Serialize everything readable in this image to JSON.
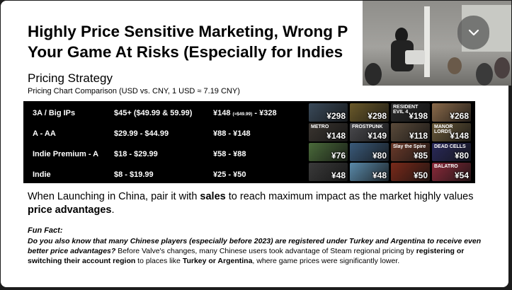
{
  "slide": {
    "title_line1": "Highly Price Sensitive Marketing, Wrong P",
    "title_line2": "Your Game At Risks (Especially for Indies",
    "subtitle": "Pricing Strategy",
    "subnote": "Pricing Chart Comparison (USD vs. CNY, 1 USD ≈ 7.19 CNY)"
  },
  "pricing_table": {
    "rows": [
      {
        "tier": "3A / Big IPs",
        "usd": "$45+ ($49.99 & 59.99)",
        "cny": "¥148",
        "cny_small": "(≈$49.99)",
        "cny_tail": "- ¥328"
      },
      {
        "tier": "A - AA",
        "usd": "$29.99 - $44.99",
        "cny": "¥88 - ¥148",
        "cny_small": "",
        "cny_tail": ""
      },
      {
        "tier": "Indie Premium - A",
        "usd": "$18 - $29.99",
        "cny": "¥58 - ¥88",
        "cny_small": "",
        "cny_tail": ""
      },
      {
        "tier": "Indie",
        "usd": "$8 - $19.99",
        "cny": "¥25 - ¥50",
        "cny_small": "",
        "cny_tail": ""
      }
    ]
  },
  "game_tiles": [
    {
      "name": "",
      "price": "298",
      "color": "#3a4a5a"
    },
    {
      "name": "",
      "price": "298",
      "color": "#6b5a2a"
    },
    {
      "name": "RESIDENT EVIL 4",
      "price": "198",
      "color": "#2a2a2a"
    },
    {
      "name": "",
      "price": "268",
      "color": "#8a6a4a"
    },
    {
      "name": "METRO",
      "price": "148",
      "color": "#3a3530"
    },
    {
      "name": "FROSTPUNK",
      "price": "149",
      "color": "#4a4a4e"
    },
    {
      "name": "",
      "price": "118",
      "color": "#5a4a3a"
    },
    {
      "name": "MANOR LORDS",
      "price": "148",
      "color": "#6a5a3a"
    },
    {
      "name": "",
      "price": "76",
      "color": "#4a6a3a"
    },
    {
      "name": "",
      "price": "80",
      "color": "#3a5a7a"
    },
    {
      "name": "Slay the Spire",
      "price": "85",
      "color": "#6a3a2a"
    },
    {
      "name": "DEAD CELLS",
      "price": "80",
      "color": "#2a2a5a"
    },
    {
      "name": "",
      "price": "48",
      "color": "#3a3a3a"
    },
    {
      "name": "",
      "price": "48",
      "color": "#5a8aaa"
    },
    {
      "name": "",
      "price": "50",
      "color": "#7a2a1a"
    },
    {
      "name": "BALATRO",
      "price": "54",
      "color": "#8a2a3a"
    }
  ],
  "body": {
    "line_a": "When Launching in China, pair it with ",
    "sales": "sales",
    "line_b": " to reach maximum impact as the market highly values ",
    "price_adv": "price advantages",
    "period": "."
  },
  "fun_fact": {
    "heading": "Fun Fact:",
    "question": "Do you also know that many Chinese players (especially before 2023) are registered under Turkey and Argentina to receive even better price advantages?",
    "text_a": " Before Valve's changes, many Chinese users took advantage of Steam regional pricing by ",
    "bold_a": "registering or switching their account region",
    "text_b": " to places like ",
    "bold_b": "Turkey or Argentina",
    "text_c": ", where game prices were significantly lower."
  },
  "overlay": {
    "collapse_icon": "chevron-down-icon"
  }
}
